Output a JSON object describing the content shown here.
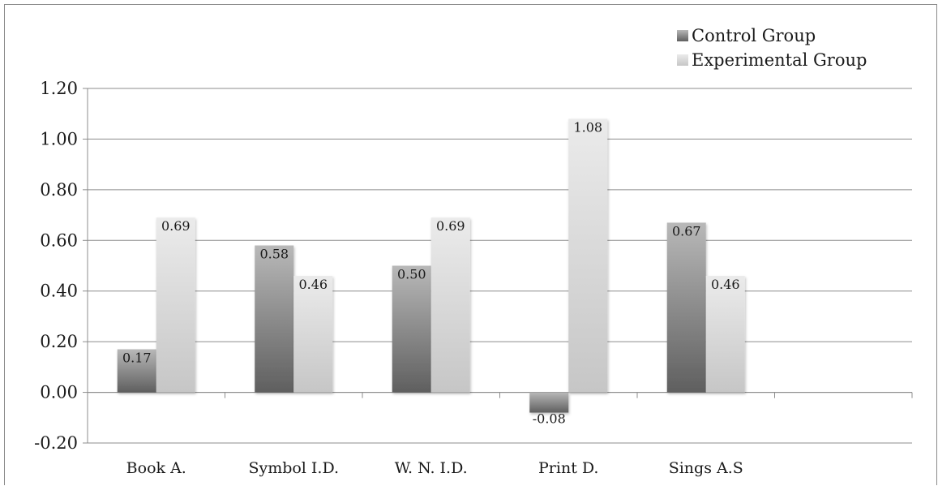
{
  "chart_data": {
    "type": "bar",
    "categories": [
      "Book A.",
      "Symbol I.D.",
      "W. N. I.D.",
      "Print D.",
      "Sings A.S",
      ""
    ],
    "series": [
      {
        "name": "Control Group",
        "values": [
          0.17,
          0.58,
          0.5,
          -0.08,
          0.67,
          null
        ],
        "labels": [
          "0.17",
          "0.58",
          "0.50",
          "-0.08",
          "0.67",
          ""
        ],
        "color_dark": "#6b6b6b",
        "color_light": "#b4b4b4"
      },
      {
        "name": "Experimental Group",
        "values": [
          0.69,
          0.46,
          0.69,
          1.08,
          0.46,
          null
        ],
        "labels": [
          "0.69",
          "0.46",
          "0.69",
          "1.08",
          "0.46",
          ""
        ],
        "color_dark": "#cfcfcf",
        "color_light": "#e8e8e8"
      }
    ],
    "ylim": [
      -0.2,
      1.2
    ],
    "yticks": [
      -0.2,
      0.0,
      0.2,
      0.4,
      0.6,
      0.8,
      1.0,
      1.2
    ],
    "ytick_labels": [
      "-0.20",
      "0.00",
      "0.20",
      "0.40",
      "0.60",
      "0.80",
      "1.00",
      "1.20"
    ],
    "grid": true,
    "legend_position": "top-right",
    "title": "",
    "xlabel": "",
    "ylabel": ""
  }
}
